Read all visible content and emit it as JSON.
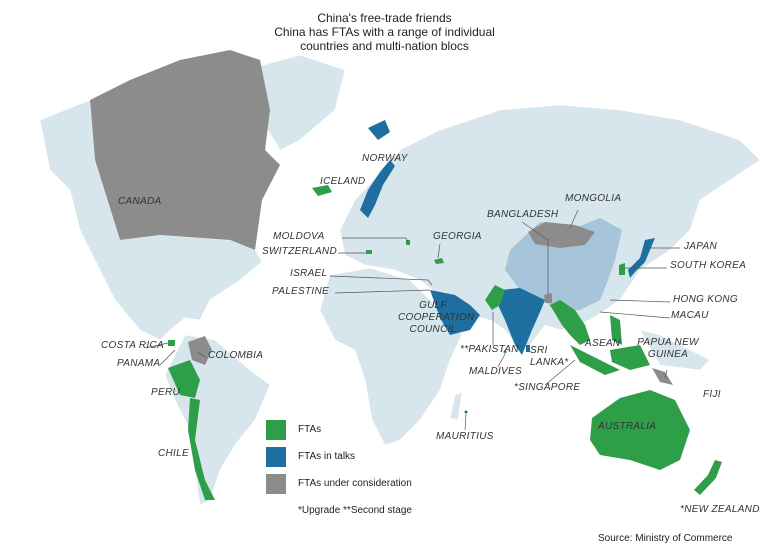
{
  "title": {
    "line1": "China's free-trade friends",
    "line2": "China has FTAs with a range of individual",
    "line3": "countries and multi-nation blocs"
  },
  "colors": {
    "fta": "#2e9e48",
    "in_talks": "#1e6e9f",
    "under_consideration": "#8c8c8c",
    "china": "#a6c4da",
    "land": "#d7e6ed"
  },
  "legend": {
    "fta": "FTAs",
    "in_talks": "FTAs in talks",
    "under_consideration": "FTAs under consideration",
    "note": "*Upgrade  **Second stage"
  },
  "labels": {
    "canada": "CANADA",
    "iceland": "ICELAND",
    "norway": "NORWAY",
    "moldova": "MOLDOVA",
    "switzerland": "SWITZERLAND",
    "georgia": "GEORGIA",
    "israel": "ISRAEL",
    "palestine": "PALESTINE",
    "gcc1": "GULF",
    "gcc2": "COOPERATION",
    "gcc3": "COUNCIL",
    "bangladesh": "BANGLADESH",
    "mongolia": "MONGOLIA",
    "japan": "JAPAN",
    "south_korea": "SOUTH KOREA",
    "hong_kong": "HONG KONG",
    "macau": "MACAU",
    "png1": "PAPUA NEW",
    "png2": "GUINEA",
    "asean": "ASEAN",
    "pakistan": "**PAKISTAN",
    "sri_lanka1": "SRI",
    "sri_lanka2": "LANKA*",
    "maldives": "MALDIVES",
    "singapore": "*SINGAPORE",
    "fiji": "FIJI",
    "mauritius": "MAURITIUS",
    "australia": "AUSTRALIA",
    "new_zealand": "*NEW ZEALAND",
    "costa_rica": "COSTA RICA",
    "panama": "PANAMA",
    "colombia": "COLOMBIA",
    "peru": "PERU",
    "chile": "CHILE"
  },
  "source": "Source: Ministry of Commerce"
}
